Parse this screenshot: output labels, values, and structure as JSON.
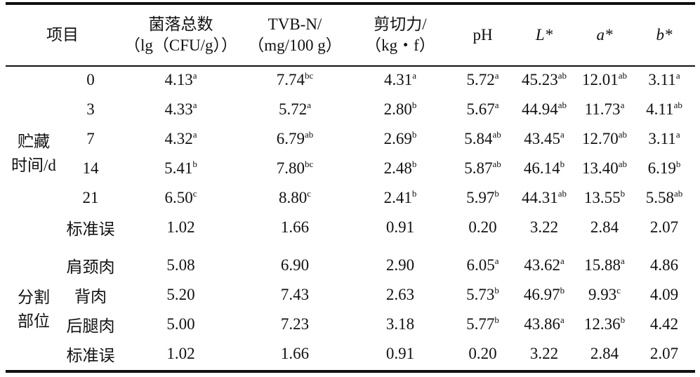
{
  "header": {
    "item": "项目",
    "colony_line1": "菌落总数",
    "colony_line2": "（lg（CFU/g））",
    "tvbn_line1": "TVB-N/",
    "tvbn_line2": "（mg/100 g）",
    "shear_line1": "剪切力/",
    "shear_line2": "（kg・f）",
    "ph": "pH",
    "l": "L*",
    "a": "a*",
    "b": "b*"
  },
  "groups": [
    {
      "label_line1": "贮藏",
      "label_line2": "时间/d",
      "rows": [
        {
          "name": "0",
          "cells": [
            {
              "v": "4.13",
              "s": "a"
            },
            {
              "v": "7.74",
              "s": "bc"
            },
            {
              "v": "4.31",
              "s": "a"
            },
            {
              "v": "5.72",
              "s": "a"
            },
            {
              "v": "45.23",
              "s": "ab"
            },
            {
              "v": "12.01",
              "s": "ab"
            },
            {
              "v": "3.11",
              "s": "a"
            }
          ]
        },
        {
          "name": "3",
          "cells": [
            {
              "v": "4.33",
              "s": "a"
            },
            {
              "v": "5.72",
              "s": "a"
            },
            {
              "v": "2.80",
              "s": "b"
            },
            {
              "v": "5.67",
              "s": "a"
            },
            {
              "v": "44.94",
              "s": "ab"
            },
            {
              "v": "11.73",
              "s": "a"
            },
            {
              "v": "4.11",
              "s": "ab"
            }
          ]
        },
        {
          "name": "7",
          "cells": [
            {
              "v": "4.32",
              "s": "a"
            },
            {
              "v": "6.79",
              "s": "ab"
            },
            {
              "v": "2.69",
              "s": "b"
            },
            {
              "v": "5.84",
              "s": "ab"
            },
            {
              "v": "43.45",
              "s": "a"
            },
            {
              "v": "12.70",
              "s": "ab"
            },
            {
              "v": "3.11",
              "s": "a"
            }
          ]
        },
        {
          "name": "14",
          "cells": [
            {
              "v": "5.41",
              "s": "b"
            },
            {
              "v": "7.80",
              "s": "bc"
            },
            {
              "v": "2.48",
              "s": "b"
            },
            {
              "v": "5.87",
              "s": "ab"
            },
            {
              "v": "46.14",
              "s": "b"
            },
            {
              "v": "13.40",
              "s": "ab"
            },
            {
              "v": "6.19",
              "s": "b"
            }
          ]
        },
        {
          "name": "21",
          "cells": [
            {
              "v": "6.50",
              "s": "c"
            },
            {
              "v": "8.80",
              "s": "c"
            },
            {
              "v": "2.41",
              "s": "b"
            },
            {
              "v": "5.97",
              "s": "b"
            },
            {
              "v": "44.31",
              "s": "ab"
            },
            {
              "v": "13.55",
              "s": "b"
            },
            {
              "v": "5.58",
              "s": "ab"
            }
          ]
        },
        {
          "name": "标准误",
          "cells": [
            {
              "v": "1.02",
              "s": ""
            },
            {
              "v": "1.66",
              "s": ""
            },
            {
              "v": "0.91",
              "s": ""
            },
            {
              "v": "0.20",
              "s": ""
            },
            {
              "v": "3.22",
              "s": ""
            },
            {
              "v": "2.84",
              "s": ""
            },
            {
              "v": "2.07",
              "s": ""
            }
          ]
        }
      ]
    },
    {
      "label_line1": "分割",
      "label_line2": "部位",
      "rows": [
        {
          "name": "肩颈肉",
          "cells": [
            {
              "v": "5.08",
              "s": ""
            },
            {
              "v": "6.90",
              "s": ""
            },
            {
              "v": "2.90",
              "s": ""
            },
            {
              "v": "6.05",
              "s": "a"
            },
            {
              "v": "43.62",
              "s": "a"
            },
            {
              "v": "15.88",
              "s": "a"
            },
            {
              "v": "4.86",
              "s": ""
            }
          ]
        },
        {
          "name": "背肉",
          "cells": [
            {
              "v": "5.20",
              "s": ""
            },
            {
              "v": "7.43",
              "s": ""
            },
            {
              "v": "2.63",
              "s": ""
            },
            {
              "v": "5.73",
              "s": "b"
            },
            {
              "v": "46.97",
              "s": "b"
            },
            {
              "v": "9.93",
              "s": "c"
            },
            {
              "v": "4.09",
              "s": ""
            }
          ]
        },
        {
          "name": "后腿肉",
          "cells": [
            {
              "v": "5.00",
              "s": ""
            },
            {
              "v": "7.23",
              "s": ""
            },
            {
              "v": "3.18",
              "s": ""
            },
            {
              "v": "5.77",
              "s": "b"
            },
            {
              "v": "43.86",
              "s": "a"
            },
            {
              "v": "12.36",
              "s": "b"
            },
            {
              "v": "4.42",
              "s": ""
            }
          ]
        },
        {
          "name": "标准误",
          "cells": [
            {
              "v": "1.02",
              "s": ""
            },
            {
              "v": "1.66",
              "s": ""
            },
            {
              "v": "0.91",
              "s": ""
            },
            {
              "v": "0.20",
              "s": ""
            },
            {
              "v": "3.22",
              "s": ""
            },
            {
              "v": "2.84",
              "s": ""
            },
            {
              "v": "2.07",
              "s": ""
            }
          ]
        }
      ]
    }
  ]
}
